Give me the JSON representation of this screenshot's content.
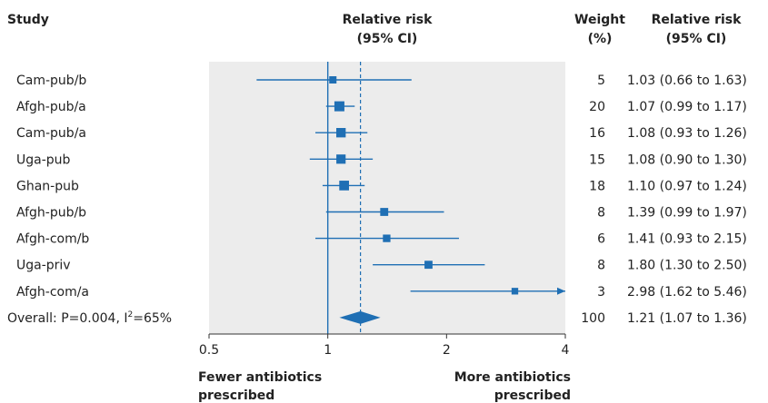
{
  "headers": {
    "study": "Study",
    "rr_plot_line1": "Relative risk",
    "rr_plot_line2": "(95% CI)",
    "weight_line1": "Weight",
    "weight_line2": "(%)",
    "rr_text_line1": "Relative risk",
    "rr_text_line2": "(95% CI)"
  },
  "axis_note_left": [
    "Fewer antibiotics",
    "prescribed"
  ],
  "axis_note_right": [
    "More antibiotics",
    "prescribed"
  ],
  "overall_label": {
    "prefix": "Overall: P=0.004, I",
    "sup": "2",
    "suffix": "=65%"
  },
  "colors": {
    "accent": "#1f6fb4",
    "panel": "#ececec",
    "text": "#222222"
  },
  "chart_data": {
    "type": "forest",
    "xscale": "log",
    "xlim": [
      0.5,
      4
    ],
    "xticks": [
      0.5,
      1,
      2,
      4
    ],
    "xtick_labels": [
      "0.5",
      "1",
      "2",
      "4"
    ],
    "null_value": 1,
    "studies": [
      {
        "name": "Cam-pub/b",
        "rr": 1.03,
        "lo": 0.66,
        "hi": 1.63,
        "weight": "5",
        "ci_text": "1.03 (0.66 to 1.63)"
      },
      {
        "name": "Afgh-pub/a",
        "rr": 1.07,
        "lo": 0.99,
        "hi": 1.17,
        "weight": "20",
        "ci_text": "1.07 (0.99 to 1.17)"
      },
      {
        "name": "Cam-pub/a",
        "rr": 1.08,
        "lo": 0.93,
        "hi": 1.26,
        "weight": "16",
        "ci_text": "1.08 (0.93 to 1.26)"
      },
      {
        "name": "Uga-pub",
        "rr": 1.08,
        "lo": 0.9,
        "hi": 1.3,
        "weight": "15",
        "ci_text": "1.08 (0.90 to 1.30)"
      },
      {
        "name": "Ghan-pub",
        "rr": 1.1,
        "lo": 0.97,
        "hi": 1.24,
        "weight": "18",
        "ci_text": "1.10 (0.97 to 1.24)"
      },
      {
        "name": "Afgh-pub/b",
        "rr": 1.39,
        "lo": 0.99,
        "hi": 1.97,
        "weight": "8",
        "ci_text": "1.39 (0.99 to 1.97)"
      },
      {
        "name": "Afgh-com/b",
        "rr": 1.41,
        "lo": 0.93,
        "hi": 2.15,
        "weight": "6",
        "ci_text": "1.41 (0.93 to 2.15)"
      },
      {
        "name": "Uga-priv",
        "rr": 1.8,
        "lo": 1.3,
        "hi": 2.5,
        "weight": "8",
        "ci_text": "1.80 (1.30 to 2.50)"
      },
      {
        "name": "Afgh-com/a",
        "rr": 2.98,
        "lo": 1.62,
        "hi": 5.46,
        "weight": "3",
        "ci_text": "2.98 (1.62 to 5.46)"
      }
    ],
    "overall": {
      "rr": 1.21,
      "lo": 1.07,
      "hi": 1.36,
      "weight": "100",
      "ci_text": "1.21 (1.07 to 1.36)"
    }
  }
}
